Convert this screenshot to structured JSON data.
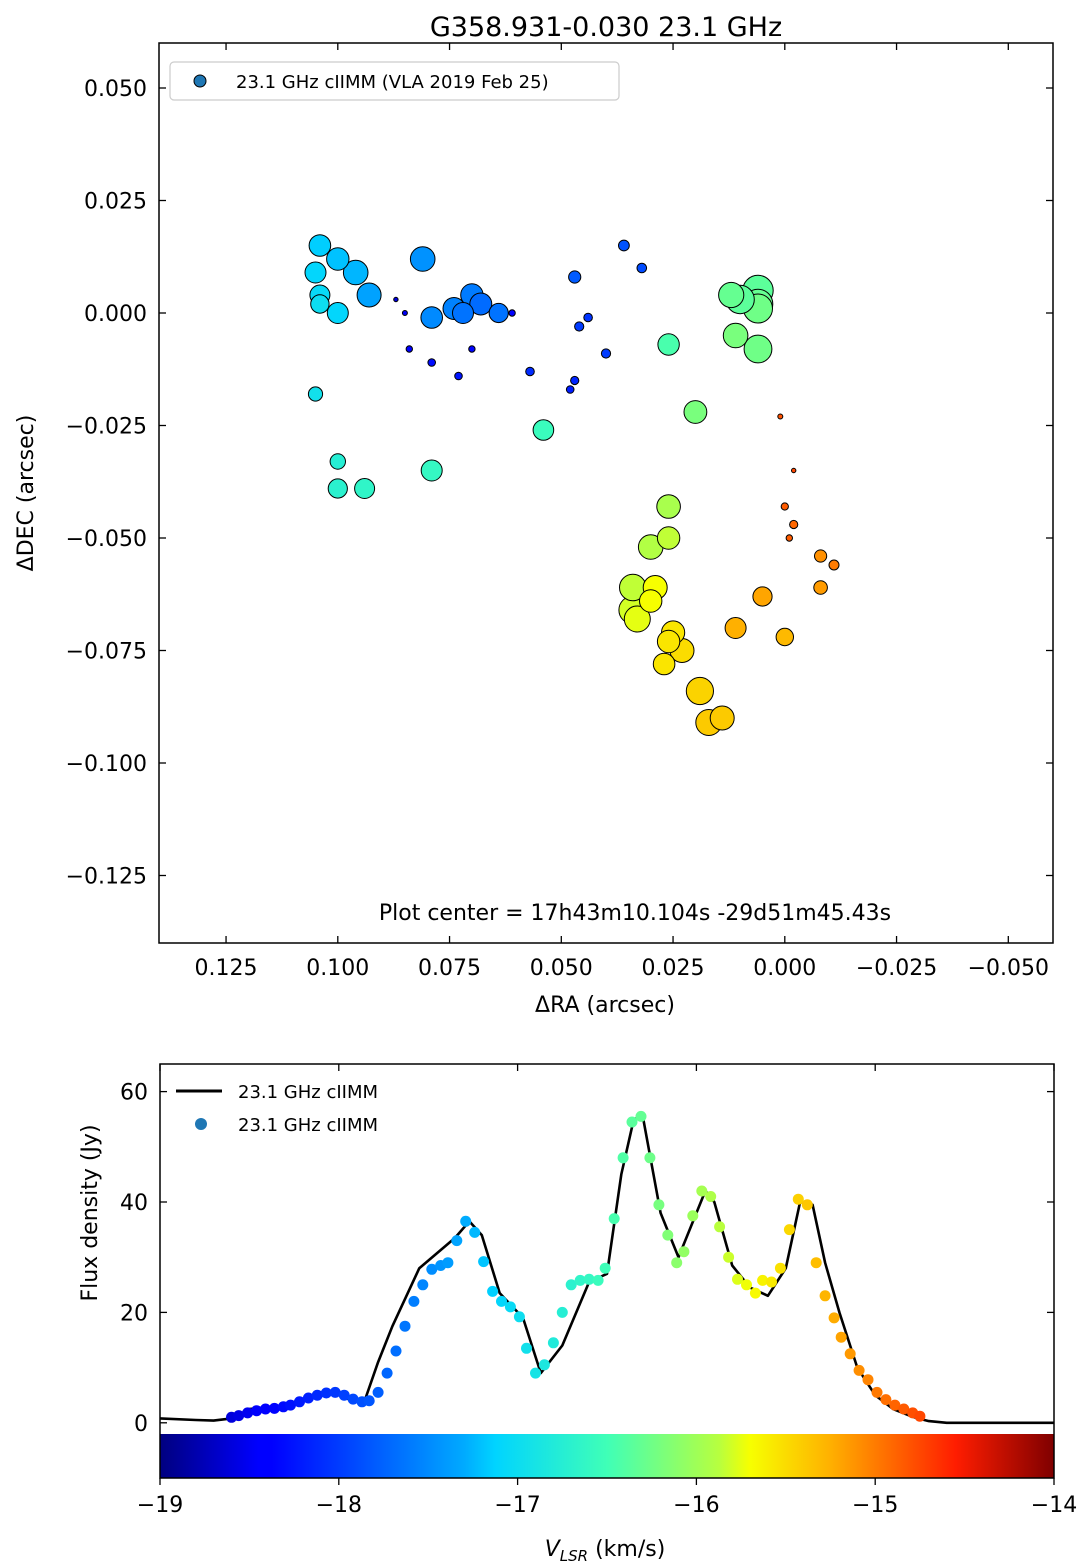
{
  "figure": {
    "title": "G358.931-0.030 23.1 GHz"
  },
  "chart_data": [
    {
      "type": "scatter",
      "panel": "top",
      "title": "G358.931-0.030 23.1 GHz",
      "xlabel": "ΔRA (arcsec)",
      "ylabel": "ΔDEC (arcsec)",
      "xlim": [
        0.14,
        -0.06
      ],
      "ylim": [
        -0.14,
        0.06
      ],
      "xticks": [
        0.125,
        0.1,
        0.075,
        0.05,
        0.025,
        0.0,
        -0.025,
        -0.05
      ],
      "xtick_labels": [
        "0.125",
        "0.100",
        "0.075",
        "0.050",
        "0.025",
        "0.000",
        "−0.025",
        "−0.050"
      ],
      "yticks": [
        0.05,
        0.025,
        0.0,
        -0.025,
        -0.05,
        -0.075,
        -0.1,
        -0.125
      ],
      "ytick_labels": [
        "0.050",
        "0.025",
        "0.000",
        "−0.025",
        "−0.050",
        "−0.075",
        "−0.100",
        "−0.125"
      ],
      "legend": {
        "position": "top-left",
        "entries": [
          {
            "label": "23.1 GHz cIIMM (VLA 2019 Feb 25)",
            "color": "#1f77b4"
          }
        ]
      },
      "annotation": "Plot center = 17h43m10.104s -29d51m45.43s",
      "marker_size_encodes": "flux density (Jy)",
      "marker_color_encodes": "VLSR (km/s)",
      "series": [
        {
          "name": "23.1 GHz cIIMM (VLA 2019 Feb 25)",
          "points": [
            {
              "ra": 0.104,
              "dec": 0.015,
              "v": -17.15,
              "f": 28
            },
            {
              "ra": 0.105,
              "dec": 0.009,
              "v": -17.1,
              "f": 26
            },
            {
              "ra": 0.1,
              "dec": 0.012,
              "v": -17.2,
              "f": 30
            },
            {
              "ra": 0.096,
              "dec": 0.009,
              "v": -17.25,
              "f": 36
            },
            {
              "ra": 0.093,
              "dec": 0.004,
              "v": -17.35,
              "f": 34
            },
            {
              "ra": 0.104,
              "dec": 0.004,
              "v": -17.05,
              "f": 24
            },
            {
              "ra": 0.104,
              "dec": 0.002,
              "v": -17.0,
              "f": 20
            },
            {
              "ra": 0.1,
              "dec": 0.0,
              "v": -17.1,
              "f": 26
            },
            {
              "ra": 0.081,
              "dec": 0.012,
              "v": -17.45,
              "f": 36
            },
            {
              "ra": 0.079,
              "dec": -0.001,
              "v": -17.5,
              "f": 28
            },
            {
              "ra": 0.074,
              "dec": 0.001,
              "v": -17.55,
              "f": 29
            },
            {
              "ra": 0.07,
              "dec": 0.004,
              "v": -17.6,
              "f": 30
            },
            {
              "ra": 0.072,
              "dec": 0.0,
              "v": -17.65,
              "f": 26
            },
            {
              "ra": 0.068,
              "dec": 0.002,
              "v": -17.7,
              "f": 29
            },
            {
              "ra": 0.064,
              "dec": 0.0,
              "v": -17.65,
              "f": 22
            },
            {
              "ra": 0.061,
              "dec": 0.0,
              "v": -18.45,
              "f": 2.5
            },
            {
              "ra": 0.087,
              "dec": 0.003,
              "v": -18.6,
              "f": 1.2
            },
            {
              "ra": 0.085,
              "dec": 0.0,
              "v": -18.5,
              "f": 1.5
            },
            {
              "ra": 0.084,
              "dec": -0.008,
              "v": -18.4,
              "f": 2.5
            },
            {
              "ra": 0.079,
              "dec": -0.011,
              "v": -18.3,
              "f": 3.5
            },
            {
              "ra": 0.073,
              "dec": -0.014,
              "v": -18.25,
              "f": 3.5
            },
            {
              "ra": 0.07,
              "dec": -0.008,
              "v": -18.35,
              "f": 2.5
            },
            {
              "ra": 0.057,
              "dec": -0.013,
              "v": -18.1,
              "f": 4.5
            },
            {
              "ra": 0.047,
              "dec": -0.015,
              "v": -18.15,
              "f": 4
            },
            {
              "ra": 0.048,
              "dec": -0.017,
              "v": -18.2,
              "f": 3.5
            },
            {
              "ra": 0.047,
              "dec": 0.008,
              "v": -17.8,
              "f": 9
            },
            {
              "ra": 0.046,
              "dec": -0.003,
              "v": -18.0,
              "f": 5
            },
            {
              "ra": 0.044,
              "dec": -0.001,
              "v": -18.05,
              "f": 4.5
            },
            {
              "ra": 0.04,
              "dec": -0.009,
              "v": -18.0,
              "f": 5
            },
            {
              "ra": 0.036,
              "dec": 0.015,
              "v": -17.85,
              "f": 7
            },
            {
              "ra": 0.032,
              "dec": 0.01,
              "v": -17.9,
              "f": 5.5
            },
            {
              "ra": 0.105,
              "dec": -0.018,
              "v": -16.95,
              "f": 12
            },
            {
              "ra": 0.1,
              "dec": -0.033,
              "v": -16.75,
              "f": 14
            },
            {
              "ra": 0.1,
              "dec": -0.039,
              "v": -16.7,
              "f": 22
            },
            {
              "ra": 0.094,
              "dec": -0.039,
              "v": -16.65,
              "f": 24
            },
            {
              "ra": 0.079,
              "dec": -0.035,
              "v": -16.6,
              "f": 26
            },
            {
              "ra": 0.054,
              "dec": -0.026,
              "v": -16.55,
              "f": 25
            },
            {
              "ra": 0.026,
              "dec": -0.007,
              "v": -16.45,
              "f": 27
            },
            {
              "ra": 0.02,
              "dec": -0.022,
              "v": -16.2,
              "f": 31
            },
            {
              "ra": 0.012,
              "dec": 0.004,
              "v": -16.3,
              "f": 38
            },
            {
              "ra": 0.01,
              "dec": 0.003,
              "v": -16.35,
              "f": 48
            },
            {
              "ra": 0.006,
              "dec": 0.005,
              "v": -16.35,
              "f": 55
            },
            {
              "ra": 0.006,
              "dec": 0.002,
              "v": -16.3,
              "f": 52
            },
            {
              "ra": 0.006,
              "dec": 0.001,
              "v": -16.25,
              "f": 50
            },
            {
              "ra": 0.011,
              "dec": -0.005,
              "v": -16.2,
              "f": 36
            },
            {
              "ra": 0.006,
              "dec": -0.008,
              "v": -16.25,
              "f": 46
            },
            {
              "ra": 0.026,
              "dec": -0.043,
              "v": -15.95,
              "f": 33
            },
            {
              "ra": 0.026,
              "dec": -0.05,
              "v": -15.85,
              "f": 30
            },
            {
              "ra": 0.03,
              "dec": -0.052,
              "v": -15.9,
              "f": 36
            },
            {
              "ra": 0.034,
              "dec": -0.061,
              "v": -15.85,
              "f": 42
            },
            {
              "ra": 0.034,
              "dec": -0.066,
              "v": -15.8,
              "f": 46
            },
            {
              "ra": 0.033,
              "dec": -0.068,
              "v": -15.75,
              "f": 40
            },
            {
              "ra": 0.029,
              "dec": -0.061,
              "v": -15.7,
              "f": 34
            },
            {
              "ra": 0.03,
              "dec": -0.064,
              "v": -15.7,
              "f": 30
            },
            {
              "ra": 0.025,
              "dec": -0.071,
              "v": -15.55,
              "f": 32
            },
            {
              "ra": 0.026,
              "dec": -0.073,
              "v": -15.55,
              "f": 30
            },
            {
              "ra": 0.023,
              "dec": -0.075,
              "v": -15.5,
              "f": 34
            },
            {
              "ra": 0.027,
              "dec": -0.078,
              "v": -15.55,
              "f": 28
            },
            {
              "ra": 0.019,
              "dec": -0.084,
              "v": -15.45,
              "f": 44
            },
            {
              "ra": 0.017,
              "dec": -0.091,
              "v": -15.4,
              "f": 40
            },
            {
              "ra": 0.014,
              "dec": -0.09,
              "v": -15.4,
              "f": 34
            },
            {
              "ra": 0.011,
              "dec": -0.07,
              "v": -15.25,
              "f": 26
            },
            {
              "ra": 0.005,
              "dec": -0.063,
              "v": -15.2,
              "f": 22
            },
            {
              "ra": 0.0,
              "dec": -0.072,
              "v": -15.3,
              "f": 18
            },
            {
              "ra": -0.008,
              "dec": -0.054,
              "v": -15.1,
              "f": 9
            },
            {
              "ra": -0.008,
              "dec": -0.061,
              "v": -15.15,
              "f": 11
            },
            {
              "ra": -0.011,
              "dec": -0.056,
              "v": -15.0,
              "f": 6
            },
            {
              "ra": -0.002,
              "dec": -0.047,
              "v": -14.9,
              "f": 4
            },
            {
              "ra": 0.0,
              "dec": -0.043,
              "v": -14.85,
              "f": 3
            },
            {
              "ra": -0.001,
              "dec": -0.05,
              "v": -14.85,
              "f": 2.5
            },
            {
              "ra": 0.001,
              "dec": -0.023,
              "v": -14.8,
              "f": 1.5
            },
            {
              "ra": -0.002,
              "dec": -0.035,
              "v": -14.75,
              "f": 1
            }
          ]
        }
      ]
    },
    {
      "type": "line",
      "panel": "bottom",
      "xlabel": "V_LSR (km/s)",
      "ylabel": "Flux density (Jy)",
      "xlim": [
        -19,
        -14
      ],
      "ylim": [
        -10,
        65
      ],
      "xticks": [
        -19,
        -18,
        -17,
        -16,
        -15,
        -14
      ],
      "xtick_labels": [
        "−19",
        "−18",
        "−17",
        "−16",
        "−15",
        "−14"
      ],
      "yticks": [
        0,
        20,
        40,
        60
      ],
      "ytick_labels": [
        "0",
        "20",
        "40",
        "60"
      ],
      "legend": {
        "position": "top-left",
        "entries": [
          {
            "label": "23.1 GHz cIIMM",
            "kind": "line",
            "color": "#000000"
          },
          {
            "label": "23.1 GHz cIIMM",
            "kind": "marker",
            "color": "#1f77b4"
          }
        ]
      },
      "colorbar": {
        "range": [
          -19,
          -14
        ],
        "colormap": "jet",
        "label": "V_LSR (km/s)"
      },
      "series": [
        {
          "name": "23.1 GHz cIIMM",
          "style": "line",
          "x": [
            -19.0,
            -18.8,
            -18.7,
            -18.6,
            -18.5,
            -18.3,
            -18.1,
            -18.0,
            -17.93,
            -17.85,
            -17.78,
            -17.7,
            -17.55,
            -17.35,
            -17.27,
            -17.2,
            -17.1,
            -16.97,
            -16.87,
            -16.75,
            -16.6,
            -16.5,
            -16.42,
            -16.35,
            -16.3,
            -16.2,
            -16.1,
            -16.0,
            -15.95,
            -15.9,
            -15.8,
            -15.7,
            -15.6,
            -15.5,
            -15.42,
            -15.35,
            -15.28,
            -15.2,
            -15.1,
            -15.0,
            -14.9,
            -14.8,
            -14.75,
            -14.7,
            -14.6,
            -14.0
          ],
          "y": [
            0.8,
            0.5,
            0.4,
            0.8,
            2.5,
            3.2,
            5.5,
            5.2,
            4.0,
            4.5,
            11.0,
            17.5,
            28.0,
            33.5,
            36.5,
            34.0,
            23.5,
            19.0,
            9.0,
            14.0,
            25.5,
            27.0,
            45.0,
            55.0,
            55.5,
            38.0,
            30.0,
            38.0,
            42.0,
            40.0,
            28.5,
            24.5,
            23.0,
            28.0,
            40.0,
            39.5,
            29.0,
            20.0,
            10.0,
            5.0,
            2.5,
            1.2,
            0.7,
            0.3,
            0.0,
            0.0
          ]
        },
        {
          "name": "23.1 GHz cIIMM",
          "style": "markers",
          "x": [
            -18.6,
            -18.56,
            -18.51,
            -18.46,
            -18.41,
            -18.36,
            -18.31,
            -18.27,
            -18.22,
            -18.17,
            -18.12,
            -18.07,
            -18.02,
            -17.97,
            -17.92,
            -17.87,
            -17.83,
            -17.78,
            -17.73,
            -17.68,
            -17.63,
            -17.58,
            -17.53,
            -17.48,
            -17.43,
            -17.39,
            -17.34,
            -17.29,
            -17.24,
            -17.19,
            -17.14,
            -17.09,
            -17.04,
            -16.99,
            -16.95,
            -16.9,
            -16.85,
            -16.8,
            -16.75,
            -16.7,
            -16.65,
            -16.6,
            -16.55,
            -16.51,
            -16.46,
            -16.41,
            -16.36,
            -16.31,
            -16.26,
            -16.21,
            -16.16,
            -16.11,
            -16.07,
            -16.02,
            -15.97,
            -15.92,
            -15.87,
            -15.82,
            -15.77,
            -15.72,
            -15.67,
            -15.63,
            -15.58,
            -15.53,
            -15.48,
            -15.43,
            -15.38,
            -15.33,
            -15.28,
            -15.23,
            -15.19,
            -15.14,
            -15.09,
            -15.04,
            -14.99,
            -14.94,
            -14.89,
            -14.84,
            -14.79,
            -14.75
          ],
          "y": [
            1.0,
            1.3,
            1.8,
            2.2,
            2.5,
            2.6,
            2.9,
            3.2,
            3.8,
            4.5,
            5.0,
            5.4,
            5.5,
            5.0,
            4.3,
            3.8,
            4.0,
            5.5,
            9.0,
            13.0,
            17.5,
            22.0,
            25.0,
            27.8,
            28.5,
            29.0,
            33.0,
            36.5,
            34.5,
            29.2,
            23.8,
            22.0,
            21.0,
            19.2,
            13.5,
            9.0,
            10.5,
            14.5,
            20.0,
            25.0,
            25.8,
            26.0,
            25.8,
            28.0,
            37.0,
            48.0,
            54.5,
            55.5,
            48.0,
            39.5,
            34.0,
            29.0,
            31.0,
            37.5,
            42.0,
            41.0,
            35.5,
            30.0,
            26.0,
            25.0,
            23.5,
            25.8,
            25.5,
            28.0,
            35.0,
            40.5,
            39.5,
            29.0,
            23.0,
            19.0,
            15.5,
            12.5,
            9.5,
            7.8,
            5.5,
            4.2,
            3.2,
            2.5,
            1.8,
            1.2
          ]
        }
      ]
    }
  ]
}
